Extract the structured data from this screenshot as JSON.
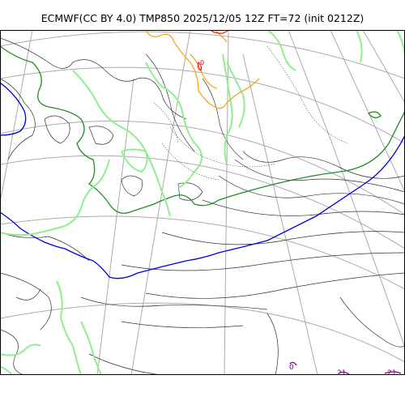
{
  "title": "ECMWF(CC BY 4.0) TMP850 2025/12/05 12Z FT=72 (init 0212Z)",
  "colors": {
    "coastline": "#222222",
    "graticule": "#aaaaaa",
    "isotherm_dark_green": "#228b22",
    "isotherm_blue": "#0000dd",
    "isotherm_light_green": "#90ee90",
    "isotherm_orange": "#f5a623",
    "isotherm_red": "#e00000",
    "isotherm_purple": "#800080"
  },
  "contour_labels": {
    "zero": "0",
    "bottom_a": "0",
    "bottom_b": "21",
    "bottom_c": "21"
  }
}
